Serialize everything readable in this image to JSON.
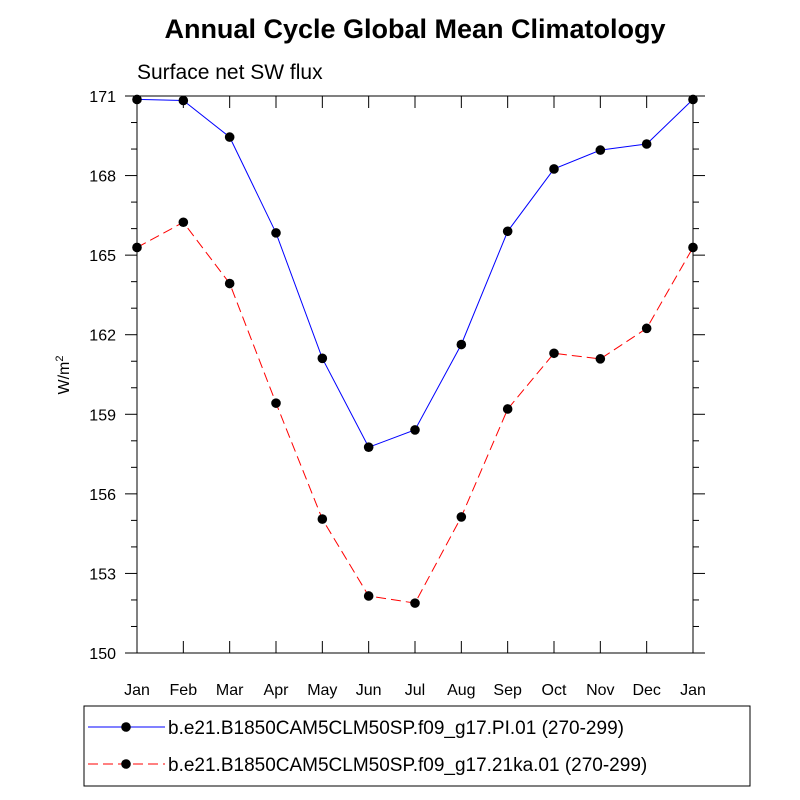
{
  "chart_data": {
    "type": "line",
    "title": "Annual Cycle Global Mean Climatology",
    "subtitle": "Surface net SW flux",
    "xlabel": "",
    "ylabel": "W/m",
    "ylabel_superscript": "2",
    "ylim": [
      150,
      171
    ],
    "yticks": [
      "150",
      "153",
      "156",
      "159",
      "162",
      "165",
      "168",
      "171"
    ],
    "categories": [
      "Jan",
      "Feb",
      "Mar",
      "Apr",
      "May",
      "Jun",
      "Jul",
      "Aug",
      "Sep",
      "Oct",
      "Nov",
      "Dec",
      "Jan"
    ],
    "grid": false,
    "legend_position": "bottom",
    "series": [
      {
        "name": "b.e21.B1850CAM5CLM50SP.f09_g17.PI.01 (270-299)",
        "color": "#0000ff",
        "dash": "solid",
        "values": [
          170.87,
          170.83,
          169.45,
          165.84,
          161.11,
          157.76,
          158.41,
          161.63,
          165.9,
          168.25,
          168.96,
          169.19,
          170.87
        ]
      },
      {
        "name": "b.e21.B1850CAM5CLM50SP.f09_g17.21ka.01 (270-299)",
        "color": "#ff0000",
        "dash": "dashed",
        "values": [
          165.29,
          166.24,
          163.93,
          159.42,
          155.05,
          152.15,
          151.88,
          155.13,
          159.2,
          161.3,
          161.09,
          162.24,
          165.29
        ]
      }
    ]
  }
}
